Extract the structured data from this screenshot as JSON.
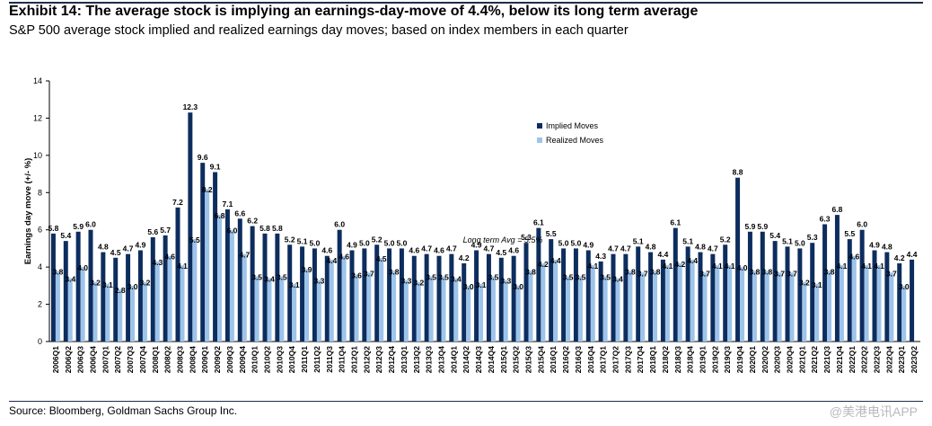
{
  "header": {
    "title": "Exhibit 14: The average stock is implying an earnings-day-move of 4.4%, below its long term average",
    "subtitle": "S&P 500 average stock implied and realized earnings day moves; based on index members in each quarter"
  },
  "footer": {
    "source": "Source: Bloomberg, Goldman Sachs Group Inc.",
    "watermark": "@美港电讯APP"
  },
  "colors": {
    "implied": "#0d2d5e",
    "realized": "#9ec4ea"
  },
  "chart_data": {
    "type": "bar",
    "ylabel": "Earnings day move (+/- %)",
    "ylim": [
      0,
      14
    ],
    "yticks": [
      0,
      2,
      4,
      6,
      8,
      10,
      12,
      14
    ],
    "legend_position": "top-right",
    "annotation": "Long term Avg = 5.5%",
    "categories": [
      "2006Q1",
      "2006Q2",
      "2006Q3",
      "2006Q4",
      "2007Q1",
      "2007Q2",
      "2007Q3",
      "2007Q4",
      "2008Q1",
      "2008Q2",
      "2008Q3",
      "2008Q4",
      "2009Q1",
      "2009Q2",
      "2009Q3",
      "2009Q4",
      "2010Q1",
      "2010Q2",
      "2010Q3",
      "2010Q4",
      "2011Q1",
      "2011Q2",
      "2011Q3",
      "2011Q4",
      "2012Q1",
      "2012Q2",
      "2012Q3",
      "2012Q4",
      "2013Q1",
      "2013Q2",
      "2013Q3",
      "2013Q4",
      "2014Q1",
      "2014Q2",
      "2014Q3",
      "2014Q4",
      "2015Q1",
      "2015Q2",
      "2015Q3",
      "2015Q4",
      "2016Q1",
      "2016Q2",
      "2016Q3",
      "2016Q4",
      "2017Q1",
      "2017Q2",
      "2017Q3",
      "2017Q4",
      "2018Q1",
      "2018Q2",
      "2018Q3",
      "2018Q4",
      "2019Q1",
      "2019Q2",
      "2019Q3",
      "2019Q4",
      "2020Q1",
      "2020Q2",
      "2020Q3",
      "2020Q4",
      "2021Q1",
      "2021Q2",
      "2021Q3",
      "2021Q4",
      "2022Q1",
      "2022Q2",
      "2022Q3",
      "2022Q4",
      "2023Q1",
      "2023Q2"
    ],
    "series": [
      {
        "name": "Implied Moves",
        "values": [
          5.8,
          5.4,
          5.9,
          6.0,
          4.8,
          4.5,
          4.7,
          4.9,
          5.6,
          5.7,
          7.2,
          12.3,
          9.6,
          9.1,
          7.1,
          6.6,
          6.2,
          5.8,
          5.8,
          5.2,
          5.1,
          5.0,
          4.6,
          6.0,
          4.9,
          5.0,
          5.2,
          5.0,
          5.0,
          4.6,
          4.7,
          4.6,
          4.7,
          4.2,
          4.9,
          4.7,
          4.5,
          4.6,
          5.3,
          6.1,
          5.5,
          5.0,
          5.0,
          4.9,
          4.3,
          4.7,
          4.7,
          5.1,
          4.8,
          4.4,
          6.1,
          5.1,
          4.8,
          4.7,
          5.2,
          8.8,
          5.9,
          5.9,
          5.4,
          5.1,
          5.0,
          5.3,
          6.3,
          6.8,
          5.5,
          6.0,
          4.9,
          4.8,
          4.2,
          4.4
        ]
      },
      {
        "name": "Realized Moves",
        "values": [
          3.8,
          3.4,
          4.0,
          3.2,
          3.1,
          2.8,
          3.0,
          3.2,
          4.3,
          4.6,
          4.1,
          5.5,
          8.2,
          6.8,
          6.0,
          4.7,
          3.5,
          3.4,
          3.5,
          3.1,
          3.9,
          3.3,
          4.4,
          4.6,
          3.6,
          3.7,
          4.5,
          3.8,
          3.3,
          3.2,
          3.5,
          3.5,
          3.4,
          3.0,
          3.1,
          3.5,
          3.3,
          3.0,
          3.8,
          4.2,
          4.4,
          3.5,
          3.5,
          4.1,
          3.5,
          3.4,
          3.8,
          3.7,
          3.8,
          4.1,
          4.2,
          4.4,
          3.7,
          4.1,
          4.1,
          4.0,
          3.8,
          3.8,
          3.7,
          3.7,
          3.2,
          3.1,
          3.8,
          4.1,
          4.6,
          4.1,
          4.1,
          3.7,
          3.0,
          null
        ]
      }
    ]
  }
}
